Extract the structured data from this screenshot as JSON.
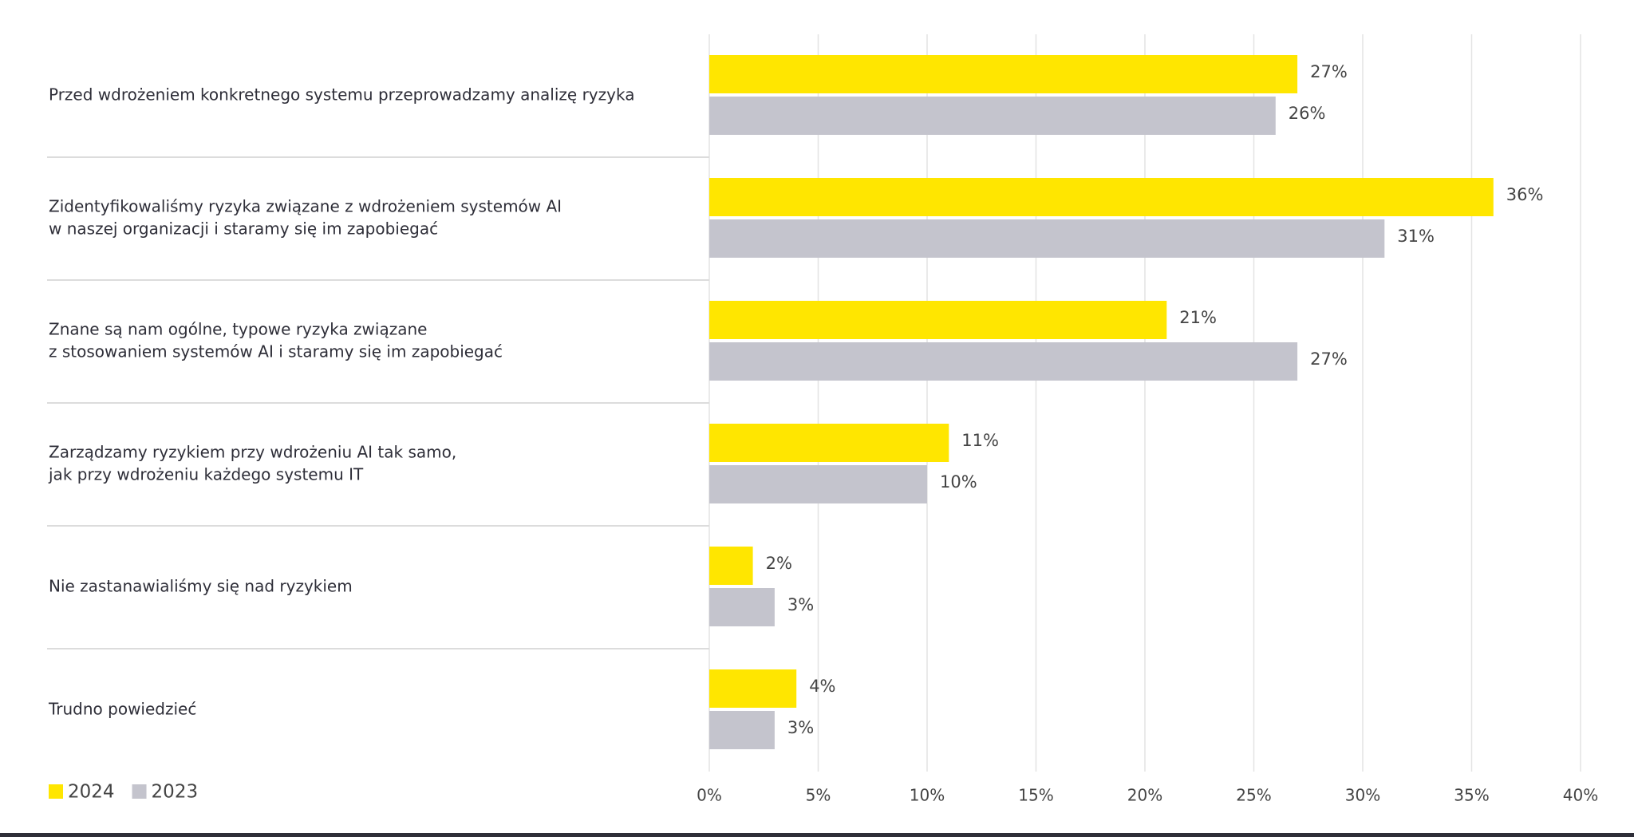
{
  "chart_data": {
    "type": "bar",
    "orientation": "horizontal",
    "categories": [
      [
        "Przed wdrożeniem konkretnego systemu przeprowadzamy analizę ryzyka"
      ],
      [
        "Zidentyfikowaliśmy ryzyka związane z wdrożeniem systemów AI",
        "w naszej organizacji i staramy się im zapobiegać"
      ],
      [
        "Znane są nam ogólne, typowe ryzyka związane",
        "z stosowaniem systemów AI i staramy się im zapobiegać"
      ],
      [
        "Zarządzamy ryzykiem przy wdrożeniu AI tak samo,",
        "jak przy wdrożeniu każdego systemu IT"
      ],
      [
        "Nie zastanawialiśmy się nad ryzykiem"
      ],
      [
        "Trudno powiedzieć"
      ]
    ],
    "series": [
      {
        "name": "2024",
        "color": "#ffe600",
        "values": [
          27,
          36,
          21,
          11,
          2,
          4
        ],
        "value_labels": [
          "27%",
          "36%",
          "21%",
          "11%",
          "2%",
          "4%"
        ]
      },
      {
        "name": "2023",
        "color": "#c4c4cd",
        "values": [
          26,
          31,
          27,
          10,
          3,
          3
        ],
        "value_labels": [
          "26%",
          "31%",
          "27%",
          "10%",
          "3%",
          "3%"
        ]
      }
    ],
    "xlim": [
      0,
      40
    ],
    "xticks": [
      {
        "value": 0,
        "label": "0%"
      },
      {
        "value": 5,
        "label": "5%"
      },
      {
        "value": 10,
        "label": "10%"
      },
      {
        "value": 15,
        "label": "15%"
      },
      {
        "value": 20,
        "label": "20%"
      },
      {
        "value": 25,
        "label": "25%"
      },
      {
        "value": 30,
        "label": "30%"
      },
      {
        "value": 35,
        "label": "35%"
      },
      {
        "value": 40,
        "label": "40%"
      }
    ],
    "grid": true,
    "legend": "bottom-left"
  }
}
